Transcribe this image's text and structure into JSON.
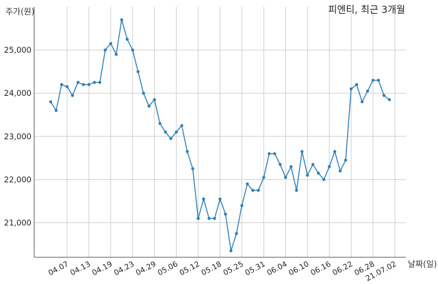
{
  "chart_data": {
    "type": "line",
    "title": "피엔티, 최근 3개월",
    "ylabel": "주가(원)",
    "xlabel": "날짜(일)",
    "ylim": [
      20200,
      26000
    ],
    "yticks": [
      21000,
      22000,
      23000,
      24000,
      25000
    ],
    "ytick_labels": [
      "21,000",
      "22,000",
      "23,000",
      "24,000",
      "25,000"
    ],
    "x_tick_labels": [
      "04.07",
      "04.13",
      "04.19",
      "04.23",
      "04.29",
      "05.06",
      "05.12",
      "05.18",
      "05.25",
      "05.31",
      "06.04",
      "06.10",
      "06.16",
      "06.22",
      "06.28",
      "21.07.02"
    ],
    "x_tick_index": [
      3,
      7,
      11,
      15,
      19,
      23,
      27,
      31,
      35,
      39,
      43,
      47,
      51,
      55,
      59,
      63
    ],
    "grid": true,
    "series": [
      {
        "values": [
          23800,
          23600,
          24200,
          24150,
          23950,
          24250,
          24200,
          24200,
          24250,
          24250,
          25000,
          25150,
          24900,
          25700,
          25250,
          25000,
          24500,
          24000,
          23700,
          23850,
          23300,
          23100,
          22950,
          23100,
          23250,
          22650,
          22250,
          21100,
          21550,
          21100,
          21100,
          21550,
          21200,
          20350,
          20750,
          21400,
          21900,
          21750,
          21750,
          22050,
          22600,
          22600,
          22350,
          22050,
          22300,
          21750,
          22650,
          22100,
          22350,
          22150,
          22000,
          22300,
          22650,
          22200,
          22450,
          24100,
          24200,
          23800,
          24050,
          24300,
          24300,
          23950,
          23850
        ],
        "color": "#2e7eb8"
      }
    ]
  }
}
